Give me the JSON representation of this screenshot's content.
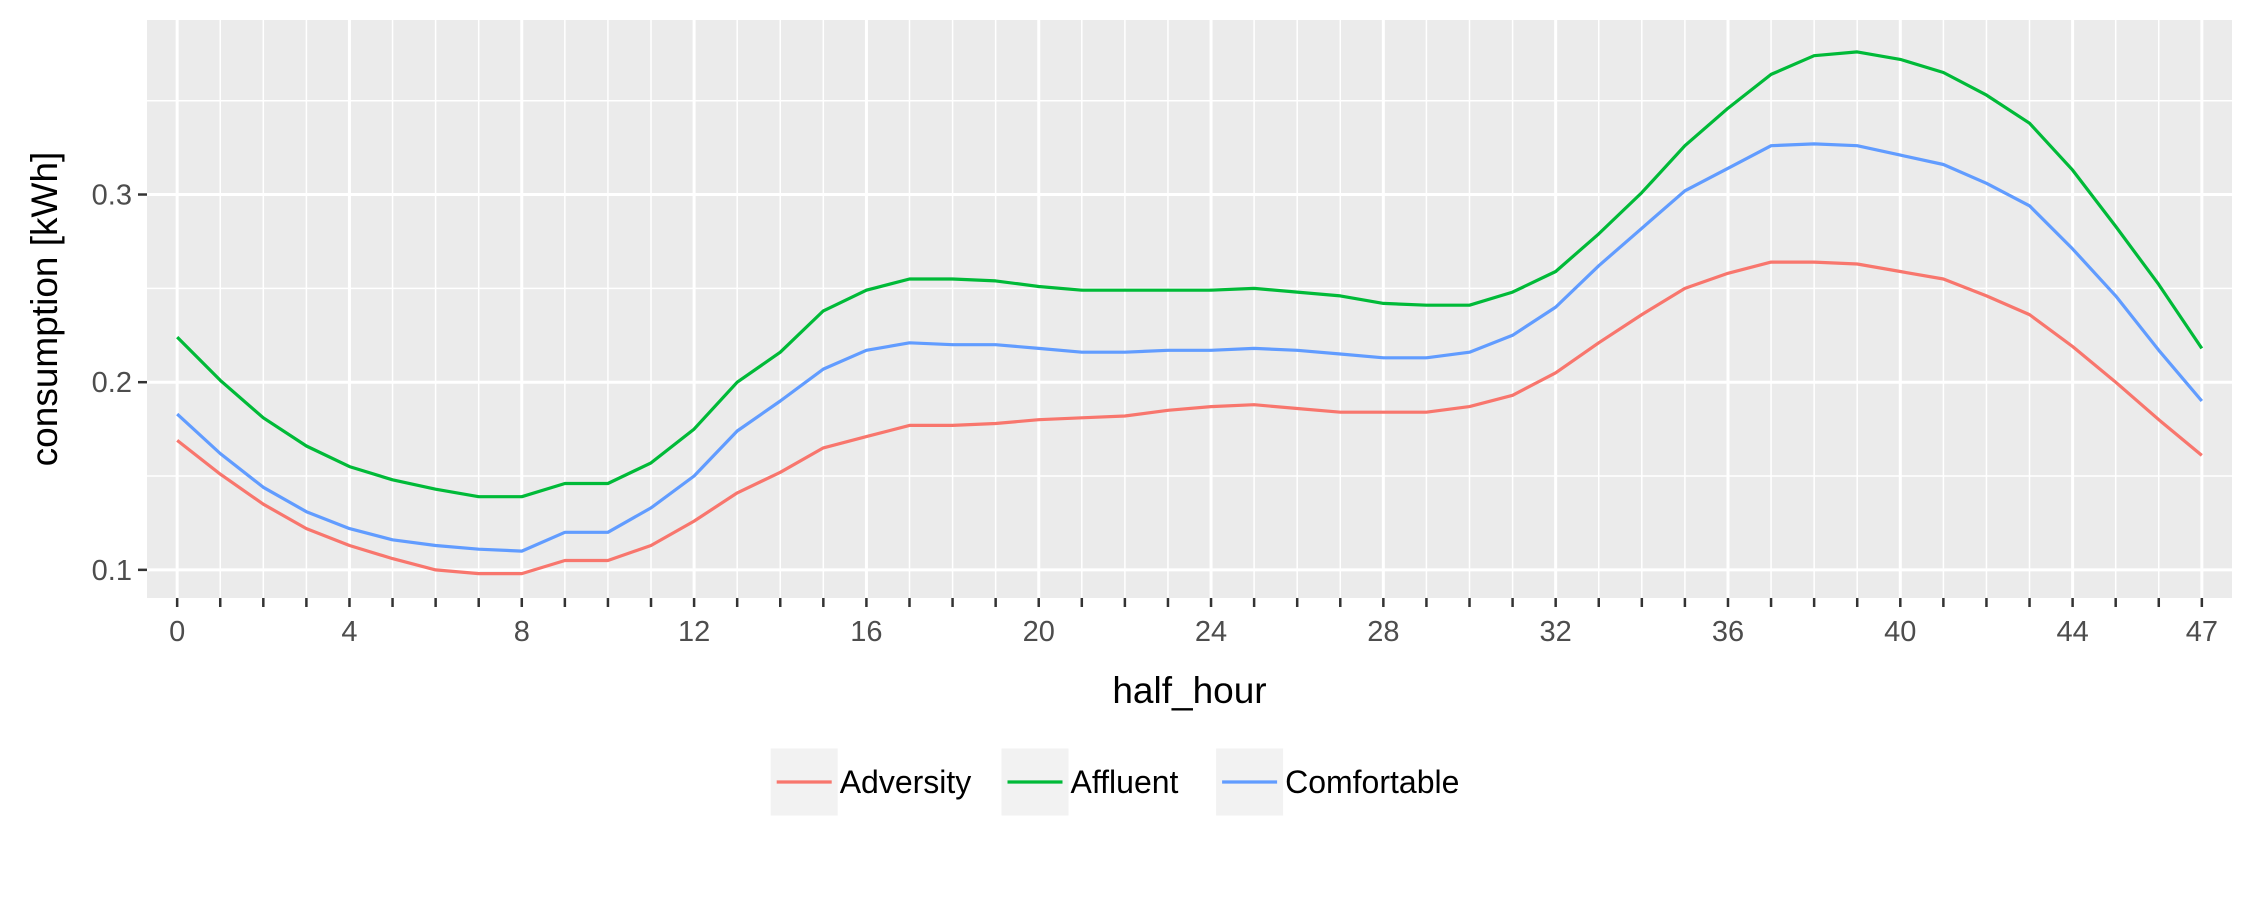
{
  "chart_data": {
    "type": "line",
    "xlabel": "half_hour",
    "ylabel": "consumption [kWh]",
    "xlim": [
      -0.7,
      47.7
    ],
    "ylim": [
      0.085,
      0.393
    ],
    "x_ticks": [
      0,
      4,
      8,
      12,
      16,
      20,
      24,
      28,
      32,
      36,
      40,
      44,
      47
    ],
    "x_tick_labels": [
      "0",
      "4",
      "8",
      "12",
      "16",
      "20",
      "24",
      "28",
      "32",
      "36",
      "40",
      "44",
      "47"
    ],
    "y_ticks": [
      0.1,
      0.2,
      0.3
    ],
    "y_tick_labels": [
      "0.1",
      "0.2",
      "0.3"
    ],
    "grid": true,
    "legend_position": "bottom",
    "background": "#EBEBEB",
    "x": [
      0,
      1,
      2,
      3,
      4,
      5,
      6,
      7,
      8,
      9,
      10,
      11,
      12,
      13,
      14,
      15,
      16,
      17,
      18,
      19,
      20,
      21,
      22,
      23,
      24,
      25,
      26,
      27,
      28,
      29,
      30,
      31,
      32,
      33,
      34,
      35,
      36,
      37,
      38,
      39,
      40,
      41,
      42,
      43,
      44,
      45,
      46,
      47
    ],
    "series": [
      {
        "name": "Adversity",
        "color": "#F8766D",
        "values": [
          0.169,
          0.151,
          0.135,
          0.122,
          0.113,
          0.106,
          0.1,
          0.098,
          0.098,
          0.105,
          0.105,
          0.113,
          0.126,
          0.141,
          0.152,
          0.165,
          0.171,
          0.177,
          0.177,
          0.178,
          0.18,
          0.181,
          0.182,
          0.185,
          0.187,
          0.188,
          0.186,
          0.184,
          0.184,
          0.184,
          0.187,
          0.193,
          0.205,
          0.221,
          0.236,
          0.25,
          0.258,
          0.264,
          0.264,
          0.263,
          0.259,
          0.255,
          0.246,
          0.236,
          0.219,
          0.2,
          0.18,
          0.161
        ]
      },
      {
        "name": "Affluent",
        "color": "#00BA38",
        "values": [
          0.224,
          0.201,
          0.181,
          0.166,
          0.155,
          0.148,
          0.143,
          0.139,
          0.139,
          0.146,
          0.146,
          0.157,
          0.175,
          0.2,
          0.216,
          0.238,
          0.249,
          0.255,
          0.255,
          0.254,
          0.251,
          0.249,
          0.249,
          0.249,
          0.249,
          0.25,
          0.248,
          0.246,
          0.242,
          0.241,
          0.241,
          0.248,
          0.259,
          0.279,
          0.301,
          0.326,
          0.346,
          0.364,
          0.374,
          0.376,
          0.372,
          0.365,
          0.353,
          0.338,
          0.313,
          0.283,
          0.252,
          0.218
        ]
      },
      {
        "name": "Comfortable",
        "color": "#619CFF",
        "values": [
          0.183,
          0.162,
          0.144,
          0.131,
          0.122,
          0.116,
          0.113,
          0.111,
          0.11,
          0.12,
          0.12,
          0.133,
          0.15,
          0.174,
          0.19,
          0.207,
          0.217,
          0.221,
          0.22,
          0.22,
          0.218,
          0.216,
          0.216,
          0.217,
          0.217,
          0.218,
          0.217,
          0.215,
          0.213,
          0.213,
          0.216,
          0.225,
          0.24,
          0.262,
          0.282,
          0.302,
          0.314,
          0.326,
          0.327,
          0.326,
          0.321,
          0.316,
          0.306,
          0.294,
          0.271,
          0.246,
          0.217,
          0.19
        ]
      }
    ]
  }
}
